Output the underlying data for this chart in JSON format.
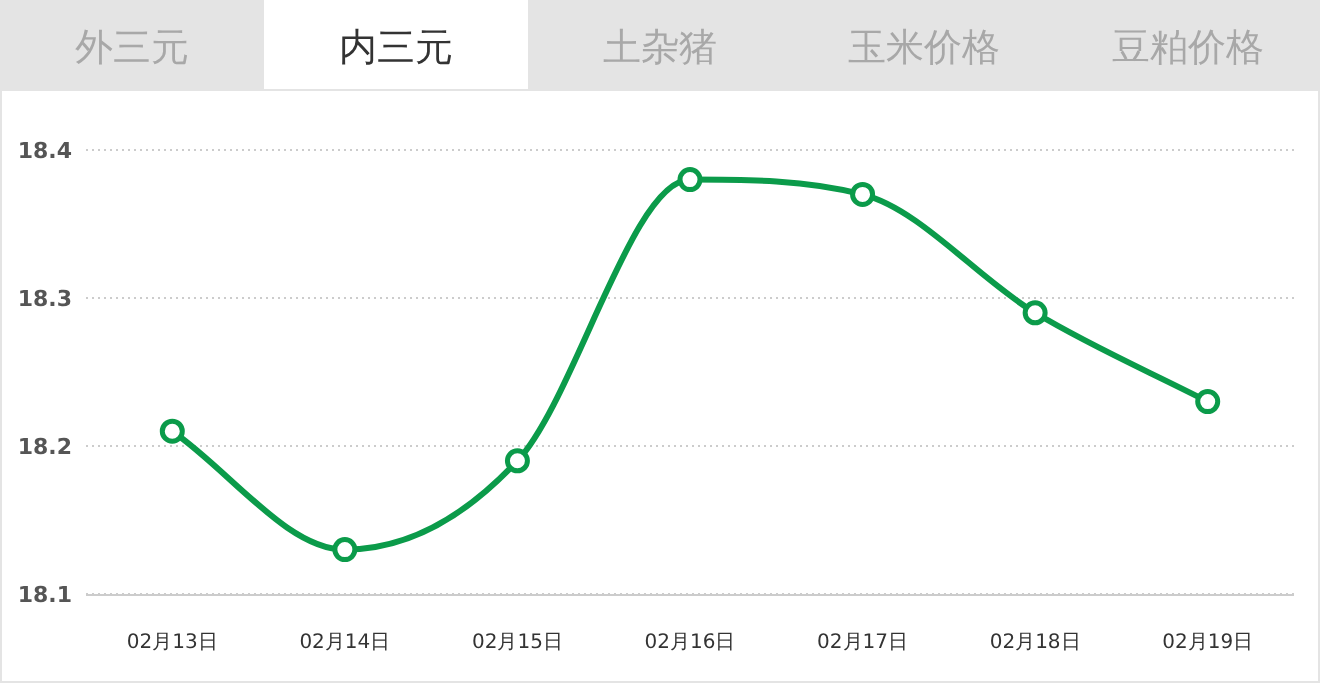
{
  "chart_data": {
    "type": "line",
    "title": "内三元",
    "annotations": [
      "外三元",
      "土杂猪",
      "玉米价格",
      "豆粕价格"
    ],
    "categories": [
      "02月13日",
      "02月14日",
      "02月15日",
      "02月16日",
      "02月17日",
      "02月18日",
      "02月19日"
    ],
    "series": [
      {
        "color": "#0b9b4a",
        "values": [
          18.21,
          18.13,
          18.19,
          18.38,
          18.37,
          18.29,
          18.23
        ]
      }
    ],
    "ylim": [
      18.1,
      18.4
    ],
    "yticks": [
      18.1,
      18.2,
      18.3,
      18.4
    ],
    "grid": "y",
    "marker": "circle",
    "line_style": "solid"
  }
}
